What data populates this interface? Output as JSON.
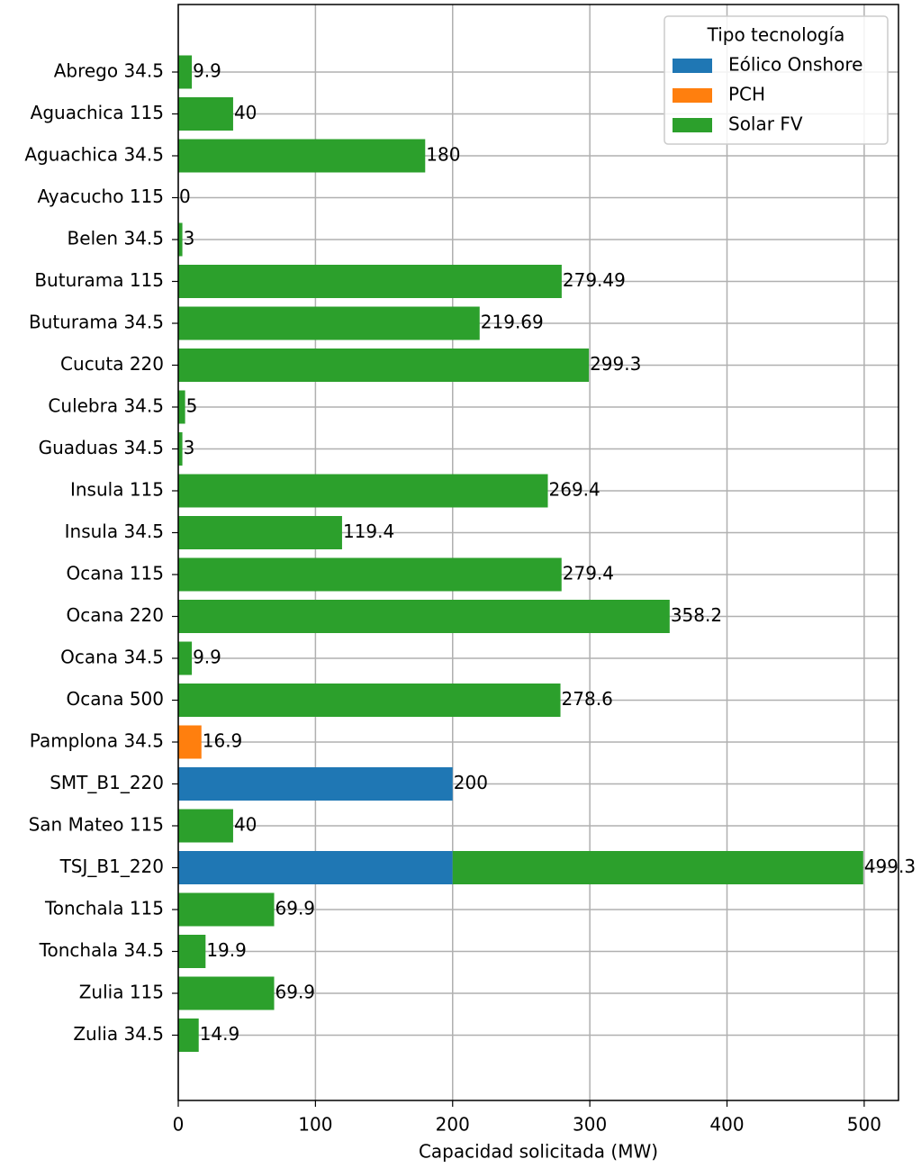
{
  "chart_data": {
    "type": "stacked_barh",
    "xlabel": "Capacidad solicitada (MW)",
    "categories": [
      "Abrego 34.5",
      "Aguachica 115",
      "Aguachica 34.5",
      "Ayacucho 115",
      "Belen 34.5",
      "Buturama 115",
      "Buturama 34.5",
      "Cucuta 220",
      "Culebra 34.5",
      "Guaduas 34.5",
      "Insula 115",
      "Insula 34.5",
      "Ocana 115",
      "Ocana 220",
      "Ocana 34.5",
      "Ocana 500",
      "Pamplona 34.5",
      "SMT_B1_220",
      "San Mateo 115",
      "TSJ_B1_220",
      "Tonchala 115",
      "Tonchala 34.5",
      "Zulia 115",
      "Zulia 34.5"
    ],
    "series": [
      {
        "name": "Eólico Onshore",
        "color": "#1f77b4",
        "values": [
          0,
          0,
          0,
          0,
          0,
          0,
          0,
          0,
          0,
          0,
          0,
          0,
          0,
          0,
          0,
          0,
          0,
          200,
          0,
          200,
          0,
          0,
          0,
          0
        ]
      },
      {
        "name": "PCH",
        "color": "#ff7f0e",
        "values": [
          0,
          0,
          0,
          0,
          0,
          0,
          0,
          0,
          0,
          0,
          0,
          0,
          0,
          0,
          0,
          0,
          16.9,
          0,
          0,
          0,
          0,
          0,
          0,
          0
        ]
      },
      {
        "name": "Solar FV",
        "color": "#2ca02c",
        "values": [
          9.9,
          40,
          180,
          0,
          3,
          279.49,
          219.69,
          299.3,
          5,
          3,
          269.4,
          119.4,
          279.4,
          358.2,
          9.9,
          278.6,
          0,
          0,
          40,
          299.3,
          69.9,
          19.9,
          69.9,
          14.9
        ]
      }
    ],
    "totals": [
      9.9,
      40,
      180,
      0,
      3,
      279.49,
      219.69,
      299.3,
      5,
      3,
      269.4,
      119.4,
      279.4,
      358.2,
      9.9,
      278.6,
      16.9,
      200,
      40,
      499.3,
      69.9,
      19.9,
      69.9,
      14.9
    ],
    "legend_title": "Tipo tecnología",
    "legend": "upper right",
    "xlim": [
      0,
      525
    ],
    "xticks": [
      0,
      100,
      200,
      300,
      400,
      500
    ],
    "grid": true
  }
}
